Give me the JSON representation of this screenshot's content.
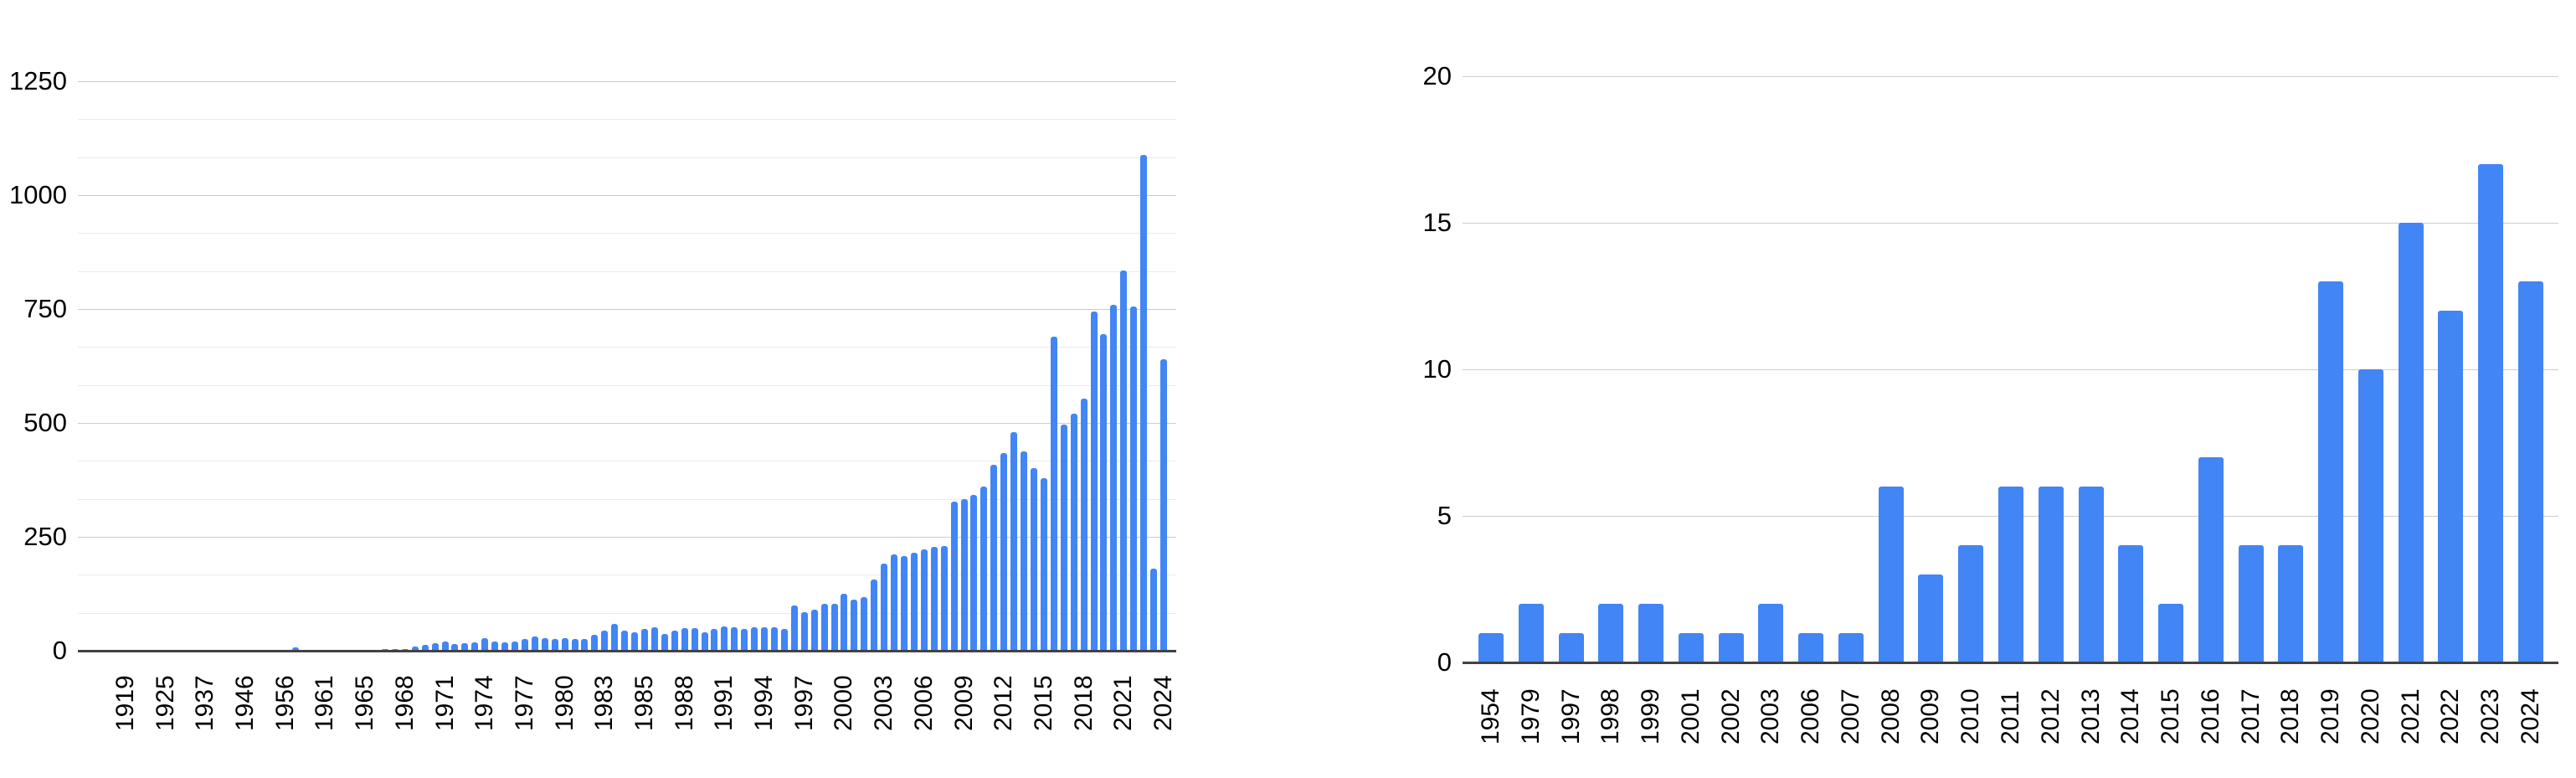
{
  "page": {
    "background": "#ffffff",
    "bar_color": "#4285F4",
    "major_grid_color": "#cccccc",
    "minor_grid_color": "#ebebeb",
    "axis_color": "#424242"
  },
  "chart_data": [
    {
      "id": "left-annual-count-chart",
      "type": "bar",
      "title": "",
      "xlabel": "",
      "ylabel": "",
      "legend": "none",
      "grid": true,
      "ylim": [
        0,
        1250
      ],
      "yticks": [
        0,
        250,
        500,
        750,
        1000,
        1250
      ],
      "ytick_labels": [
        "0",
        "250",
        "500",
        "750",
        "1000",
        "1250"
      ],
      "minor_gridlines_per_interval": 2,
      "x_labels": [
        "1919",
        "1925",
        "1937",
        "1946",
        "1956",
        "1961",
        "1965",
        "1968",
        "1971",
        "1974",
        "1977",
        "1980",
        "1983",
        "1985",
        "1988",
        "1991",
        "1994",
        "1997",
        "2000",
        "2003",
        "2006",
        "2009",
        "2012",
        "2015",
        "2018",
        "2021",
        "2024"
      ],
      "label_step": 4,
      "values": [
        1,
        0,
        0,
        0,
        1,
        0,
        0,
        1,
        1,
        0,
        0,
        1,
        1,
        0,
        0,
        1,
        2,
        8,
        1,
        1,
        2,
        1,
        2,
        1,
        2,
        2,
        3,
        3,
        4,
        9,
        12,
        16,
        21,
        14,
        16,
        19,
        27,
        21,
        19,
        21,
        25,
        32,
        28,
        25,
        28,
        26,
        25,
        35,
        44,
        59,
        45,
        40,
        47,
        52,
        37,
        44,
        49,
        49,
        41,
        48,
        54,
        51,
        47,
        51,
        51,
        52,
        48,
        99,
        84,
        90,
        103,
        103,
        125,
        112,
        118,
        157,
        192,
        211,
        208,
        215,
        222,
        228,
        230,
        328,
        333,
        342,
        360,
        408,
        434,
        479,
        438,
        400,
        379,
        690,
        497,
        520,
        553,
        745,
        695,
        760,
        835,
        755,
        1089,
        180,
        640
      ]
    },
    {
      "id": "right-annual-count-chart",
      "type": "bar",
      "title": "",
      "xlabel": "",
      "ylabel": "",
      "legend": "none",
      "grid": true,
      "ylim": [
        0,
        20
      ],
      "yticks": [
        0,
        5,
        10,
        15,
        20
      ],
      "ytick_labels": [
        "0",
        "5",
        "10",
        "15",
        "20"
      ],
      "minor_gridlines_per_interval": 0,
      "x_labels": [
        "1954",
        "1979",
        "1997",
        "1998",
        "1999",
        "2001",
        "2002",
        "2003",
        "2006",
        "2007",
        "2008",
        "2009",
        "2010",
        "2011",
        "2012",
        "2013",
        "2014",
        "2015",
        "2016",
        "2017",
        "2018",
        "2019",
        "2020",
        "2021",
        "2022",
        "2023",
        "2024"
      ],
      "label_step": 1,
      "values": [
        1,
        2,
        1,
        2,
        2,
        1,
        1,
        2,
        1,
        1,
        6,
        3,
        4,
        6,
        6,
        6,
        4,
        2,
        7,
        4,
        4,
        13,
        10,
        15,
        12,
        17,
        13
      ]
    }
  ]
}
